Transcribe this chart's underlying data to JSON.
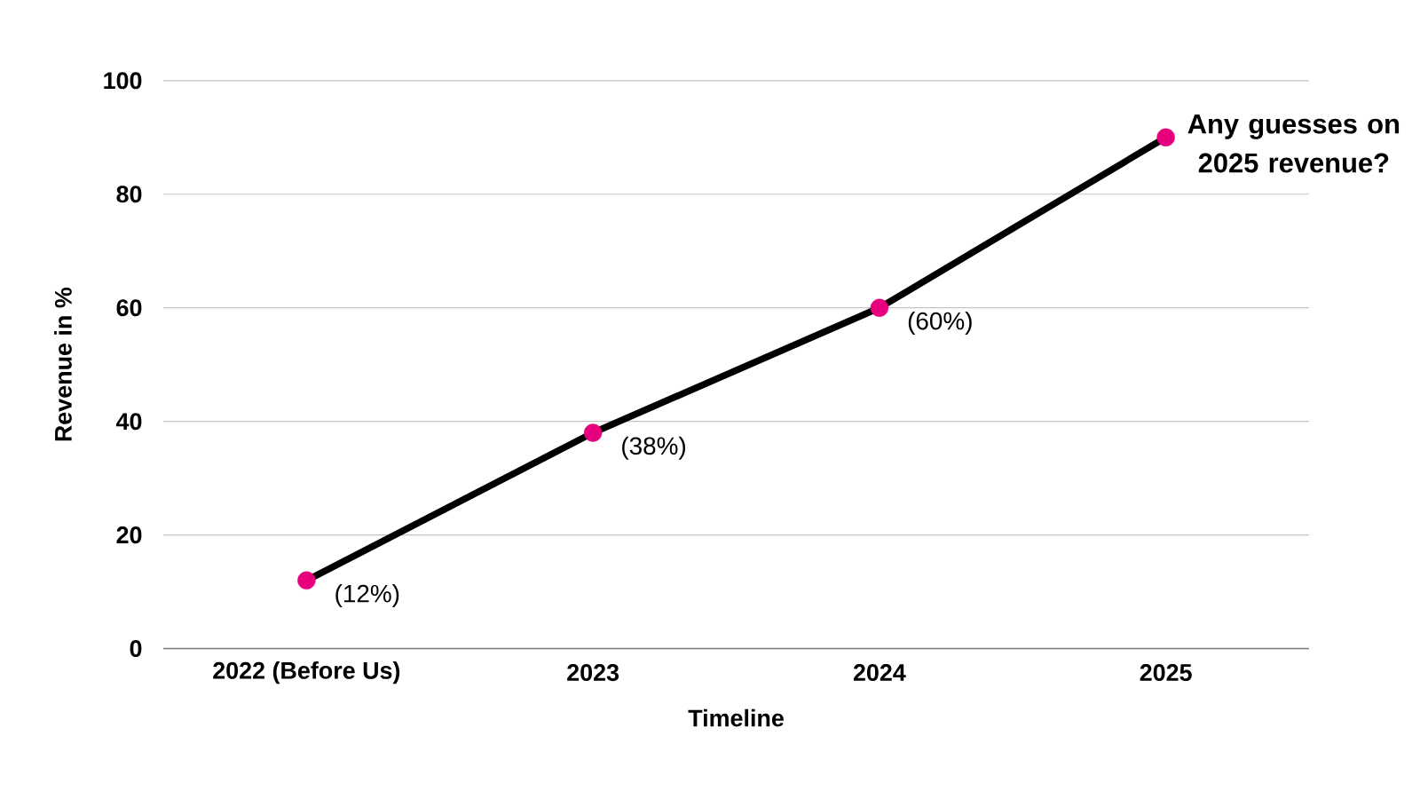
{
  "chart_data": {
    "type": "line",
    "xlabel": "Timeline",
    "ylabel": "Revenue in %",
    "categories": [
      "2022 (Before Us)",
      "2023",
      "2024",
      "2025"
    ],
    "values": [
      12,
      38,
      60,
      90
    ],
    "value_labels": [
      "(12%)",
      "(38%)",
      "(60%)",
      null
    ],
    "color": "#000000",
    "colors": [
      "#e6007e",
      "#e6007e",
      "#e6007e",
      "#e6007e"
    ],
    "marker": "circle",
    "line_style": "solid",
    "ylim": [
      0,
      100
    ],
    "yticks": [
      0,
      20,
      40,
      60,
      80,
      100
    ],
    "grid": "y",
    "annotations": [
      {
        "text": "Any guesses on 2025 revenue?",
        "x": "2025",
        "y": 90
      }
    ]
  }
}
